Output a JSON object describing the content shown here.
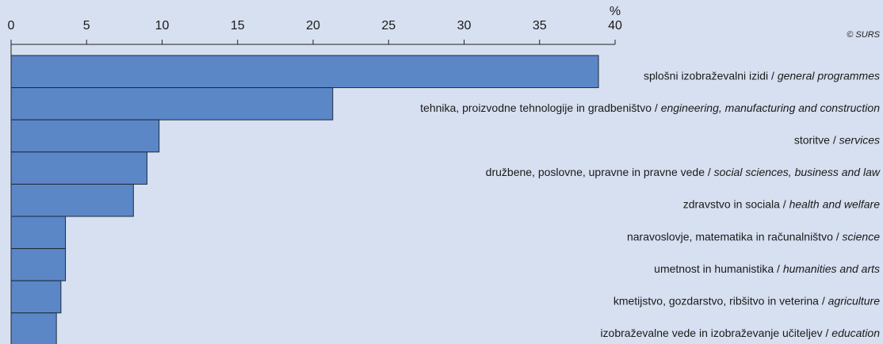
{
  "chart_data": {
    "type": "barh",
    "unit": "%",
    "credit": "© SURS",
    "categories_sl": [
      "splošni izobraževalni izidi /",
      "tehnika, proizvodne tehnologije in gradbeništvo /",
      "storitve /",
      "družbene, poslovne, upravne in pravne vede /",
      "zdravstvo in sociala /",
      "naravoslovje, matematika in računalništvo /",
      "umetnost in humanistika /",
      "kmetijstvo, gozdarstvo, ribšitvo  in veterina /",
      "izobraževalne vede in izobraževanje učiteljev /"
    ],
    "categories_en": [
      "general programmes",
      "engineering, manufacturing and construction",
      "services",
      "social sciences, business and law",
      "health and welfare",
      "science",
      "humanities and arts",
      "agriculture",
      "education"
    ],
    "values": [
      38.9,
      21.3,
      9.8,
      9.0,
      8.1,
      3.6,
      3.6,
      3.3,
      3.0
    ],
    "color": "#5b87c7",
    "xlim": [
      0,
      40
    ],
    "xticks": [
      0,
      5,
      10,
      15,
      20,
      25,
      30,
      35,
      40
    ]
  }
}
